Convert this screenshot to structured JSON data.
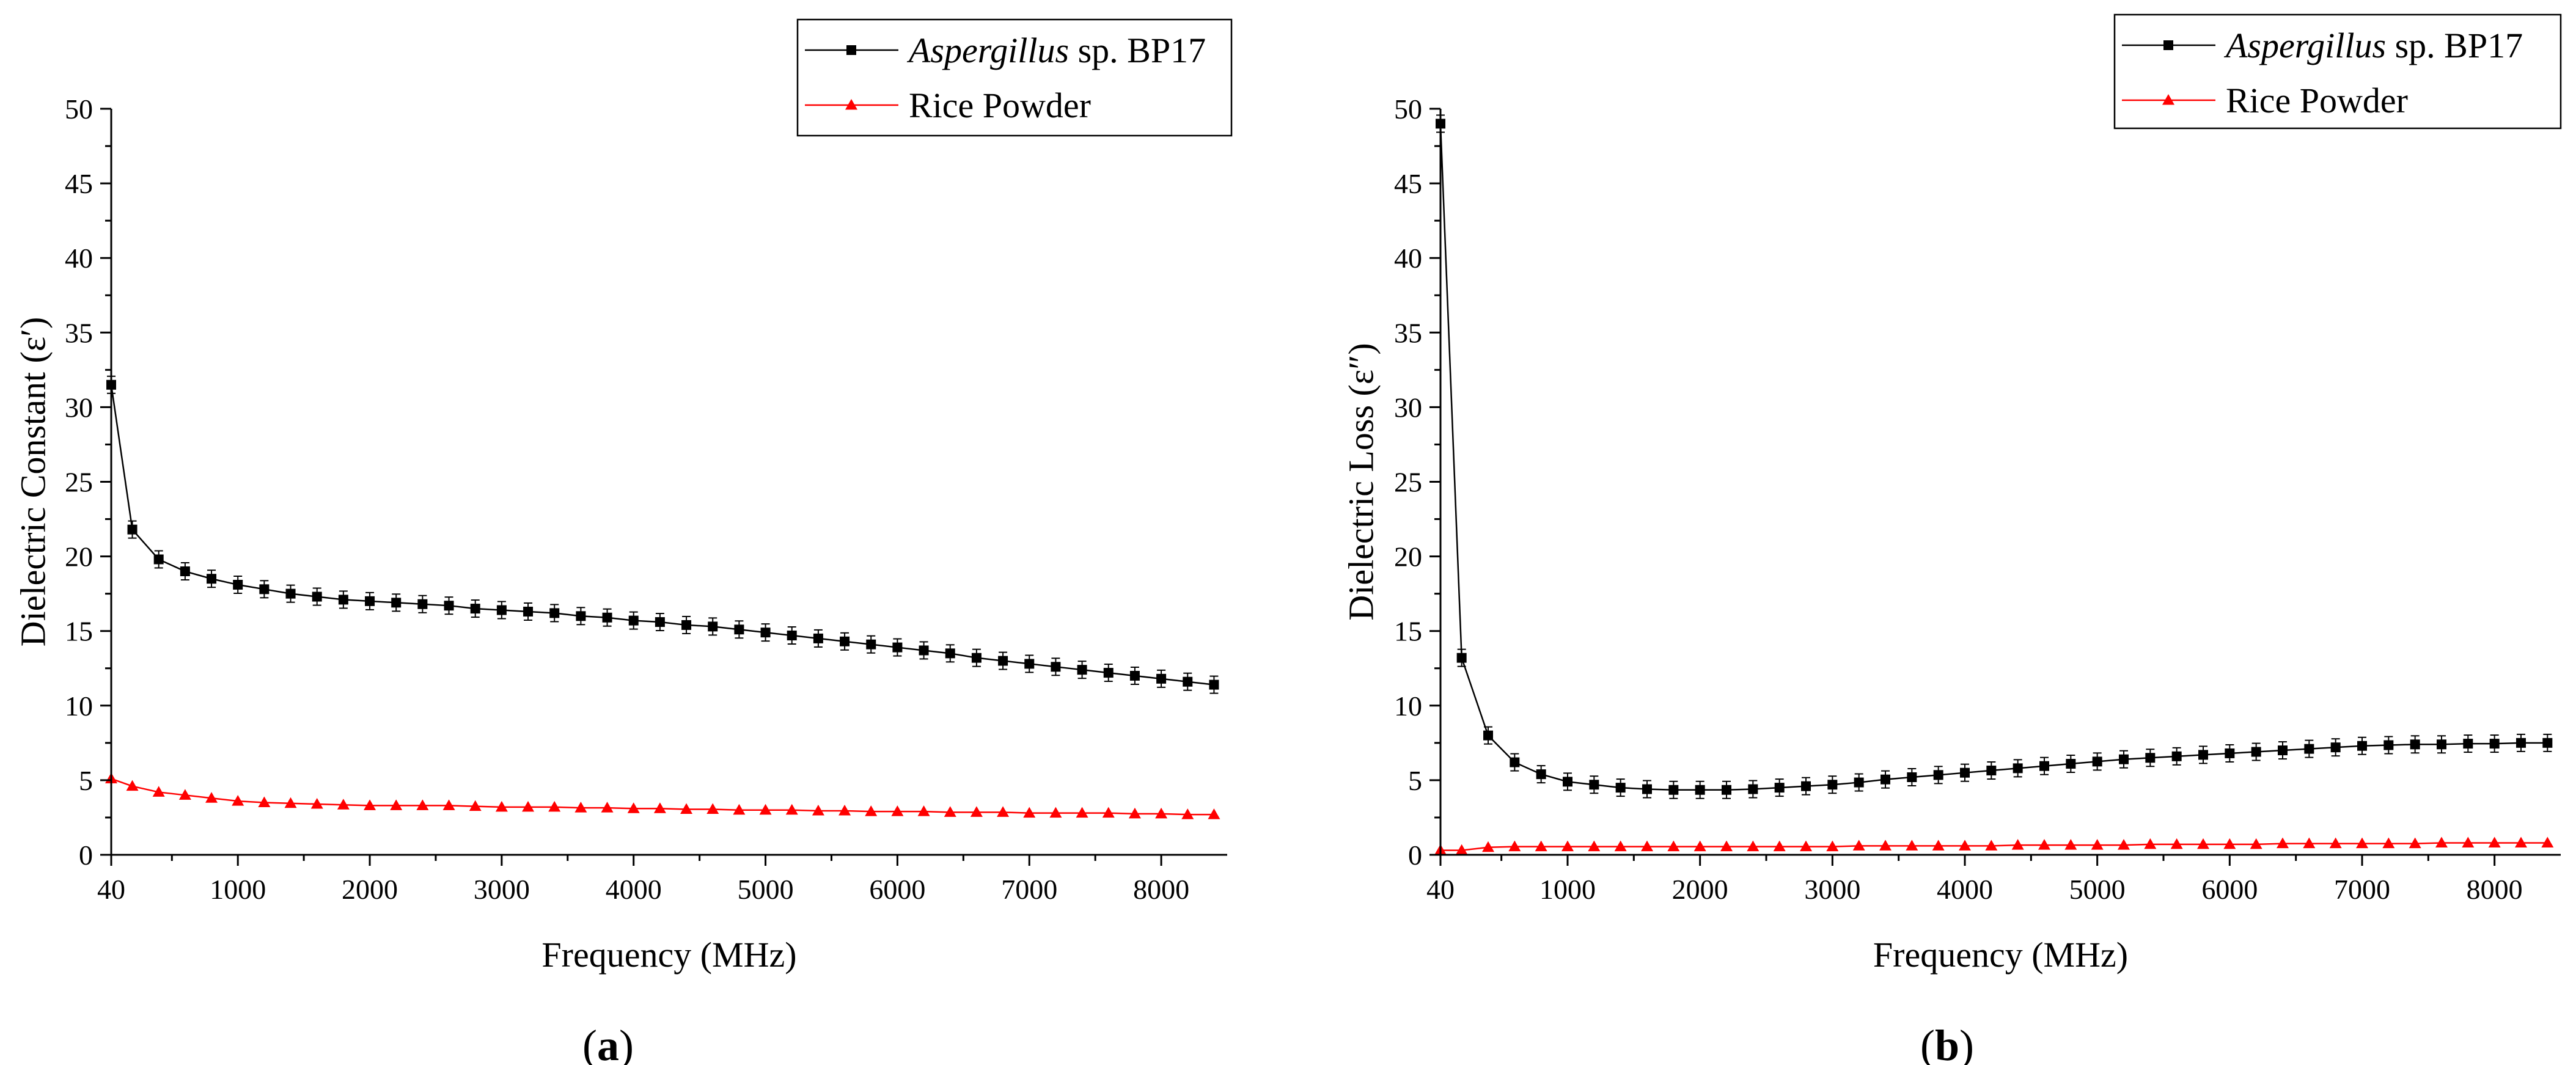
{
  "panels": [
    {
      "caption_open": "(",
      "caption_letter": "a",
      "caption_close": ")",
      "legend": [
        {
          "italic": "Aspergillus",
          "rest": " sp. BP17"
        },
        {
          "italic": "",
          "rest": "Rice Powder"
        }
      ]
    },
    {
      "caption_open": "(",
      "caption_letter": "b",
      "caption_close": ")",
      "legend": [
        {
          "italic": "Aspergillus",
          "rest": " sp. BP17"
        },
        {
          "italic": "",
          "rest": "Rice Powder"
        }
      ]
    }
  ],
  "chart_data": [
    {
      "type": "line",
      "xlabel": "Frequency (MHz)",
      "ylabel": "Dielectric Constant (ε′)",
      "xlim": [
        40,
        8500
      ],
      "ylim": [
        0,
        50
      ],
      "xticks": [
        40,
        1000,
        2000,
        3000,
        4000,
        5000,
        6000,
        7000,
        8000
      ],
      "yticks": [
        0,
        5,
        10,
        15,
        20,
        25,
        30,
        35,
        40,
        45,
        50
      ],
      "grid": false,
      "legend_position": "top-right",
      "series": [
        {
          "name": "Aspergillus sp. BP17",
          "color": "#000000",
          "marker": "square",
          "x": [
            40,
            200,
            400,
            600,
            800,
            1000,
            1200,
            1400,
            1600,
            1800,
            2000,
            2200,
            2400,
            2600,
            2800,
            3000,
            3200,
            3400,
            3600,
            3800,
            4000,
            4200,
            4400,
            4600,
            4800,
            5000,
            5200,
            5400,
            5600,
            5800,
            6000,
            6200,
            6400,
            6600,
            6800,
            7000,
            7200,
            7400,
            7600,
            7800,
            8000,
            8200,
            8400
          ],
          "y": [
            31.5,
            21.8,
            19.8,
            19.0,
            18.5,
            18.1,
            17.8,
            17.5,
            17.3,
            17.1,
            17.0,
            16.9,
            16.8,
            16.7,
            16.5,
            16.4,
            16.3,
            16.2,
            16.0,
            15.9,
            15.7,
            15.6,
            15.4,
            15.3,
            15.1,
            14.9,
            14.7,
            14.5,
            14.3,
            14.1,
            13.9,
            13.7,
            13.5,
            13.2,
            13.0,
            12.8,
            12.6,
            12.4,
            12.2,
            12.0,
            11.8,
            11.6,
            11.4
          ]
        },
        {
          "name": "Rice Powder",
          "color": "#ff0000",
          "marker": "triangle",
          "x": [
            40,
            200,
            400,
            600,
            800,
            1000,
            1200,
            1400,
            1600,
            1800,
            2000,
            2200,
            2400,
            2600,
            2800,
            3000,
            3200,
            3400,
            3600,
            3800,
            4000,
            4200,
            4400,
            4600,
            4800,
            5000,
            5200,
            5400,
            5600,
            5800,
            6000,
            6200,
            6400,
            6600,
            6800,
            7000,
            7200,
            7400,
            7600,
            7800,
            8000,
            8200,
            8400
          ],
          "y": [
            5.1,
            4.6,
            4.2,
            4.0,
            3.8,
            3.6,
            3.5,
            3.45,
            3.4,
            3.35,
            3.3,
            3.3,
            3.3,
            3.3,
            3.25,
            3.2,
            3.2,
            3.2,
            3.15,
            3.15,
            3.1,
            3.1,
            3.05,
            3.05,
            3.0,
            3.0,
            3.0,
            2.95,
            2.95,
            2.9,
            2.9,
            2.9,
            2.85,
            2.85,
            2.85,
            2.8,
            2.8,
            2.8,
            2.8,
            2.75,
            2.75,
            2.7,
            2.7
          ]
        }
      ]
    },
    {
      "type": "line",
      "xlabel": "Frequency (MHz)",
      "ylabel": "Dielectric Loss (ε″)",
      "xlim": [
        40,
        8500
      ],
      "ylim": [
        0,
        50
      ],
      "xticks": [
        40,
        1000,
        2000,
        3000,
        4000,
        5000,
        6000,
        7000,
        8000
      ],
      "yticks": [
        0,
        5,
        10,
        15,
        20,
        25,
        30,
        35,
        40,
        45,
        50
      ],
      "grid": false,
      "legend_position": "top-right",
      "series": [
        {
          "name": "Aspergillus sp. BP17",
          "color": "#000000",
          "marker": "square",
          "x": [
            40,
            200,
            400,
            600,
            800,
            1000,
            1200,
            1400,
            1600,
            1800,
            2000,
            2200,
            2400,
            2600,
            2800,
            3000,
            3200,
            3400,
            3600,
            3800,
            4000,
            4200,
            4400,
            4600,
            4800,
            5000,
            5200,
            5400,
            5600,
            5800,
            6000,
            6200,
            6400,
            6600,
            6800,
            7000,
            7200,
            7400,
            7600,
            7800,
            8000,
            8200,
            8400
          ],
          "y": [
            49.0,
            13.2,
            8.0,
            6.2,
            5.4,
            4.9,
            4.7,
            4.5,
            4.4,
            4.35,
            4.35,
            4.35,
            4.4,
            4.5,
            4.6,
            4.7,
            4.85,
            5.05,
            5.2,
            5.35,
            5.5,
            5.65,
            5.8,
            5.95,
            6.1,
            6.25,
            6.4,
            6.5,
            6.6,
            6.7,
            6.8,
            6.9,
            7.0,
            7.1,
            7.2,
            7.3,
            7.35,
            7.4,
            7.4,
            7.45,
            7.45,
            7.5,
            7.5
          ]
        },
        {
          "name": "Rice Powder",
          "color": "#ff0000",
          "marker": "triangle",
          "x": [
            40,
            200,
            400,
            600,
            800,
            1000,
            1200,
            1400,
            1600,
            1800,
            2000,
            2200,
            2400,
            2600,
            2800,
            3000,
            3200,
            3400,
            3600,
            3800,
            4000,
            4200,
            4400,
            4600,
            4800,
            5000,
            5200,
            5400,
            5600,
            5800,
            6000,
            6200,
            6400,
            6600,
            6800,
            7000,
            7200,
            7400,
            7600,
            7800,
            8000,
            8200,
            8400
          ],
          "y": [
            0.3,
            0.3,
            0.5,
            0.55,
            0.55,
            0.55,
            0.55,
            0.55,
            0.55,
            0.55,
            0.55,
            0.55,
            0.55,
            0.55,
            0.55,
            0.55,
            0.6,
            0.6,
            0.6,
            0.6,
            0.6,
            0.6,
            0.65,
            0.65,
            0.65,
            0.65,
            0.65,
            0.7,
            0.7,
            0.7,
            0.7,
            0.7,
            0.75,
            0.75,
            0.75,
            0.75,
            0.75,
            0.75,
            0.8,
            0.8,
            0.8,
            0.8,
            0.8
          ]
        }
      ]
    }
  ]
}
